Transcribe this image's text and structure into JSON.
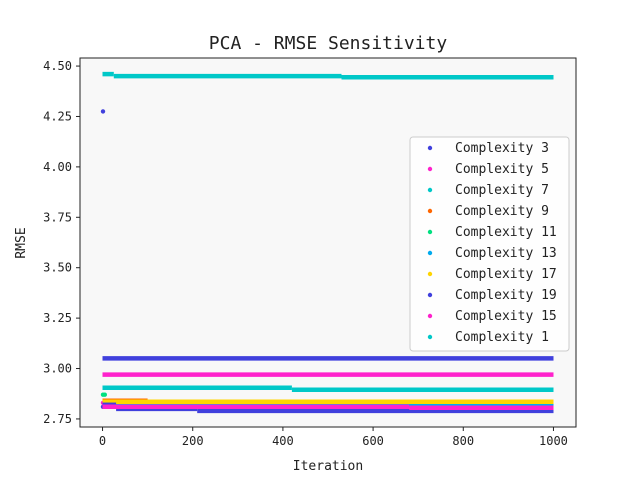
{
  "chart_data": {
    "type": "scatter",
    "title": "PCA - RMSE Sensitivity",
    "xlabel": "Iteration",
    "ylabel": "RMSE",
    "xlim": [
      -50,
      1050
    ],
    "ylim": [
      2.71,
      4.54
    ],
    "xticks": [
      0,
      200,
      400,
      600,
      800,
      1000
    ],
    "xtick_labels": [
      "0",
      "200",
      "400",
      "600",
      "800",
      "1000"
    ],
    "yticks": [
      2.75,
      3.0,
      3.25,
      3.5,
      3.75,
      4.0,
      4.25,
      4.5
    ],
    "ytick_labels": [
      "2.75",
      "3.00",
      "3.25",
      "3.50",
      "3.75",
      "4.00",
      "4.25",
      "4.50"
    ],
    "legend_position": "center-right",
    "grid": false,
    "plot_background": "#f8f8f8",
    "series": [
      {
        "name": "Complexity 3",
        "color": "#4040dd",
        "outliers": [
          [
            1,
            2.81
          ]
        ],
        "segments": [
          [
            0,
            1000,
            2.815
          ]
        ]
      },
      {
        "name": "Complexity 5",
        "color": "#ff22cc",
        "outliers": [
          [
            1,
            2.83
          ]
        ],
        "segments": [
          [
            0,
            1000,
            2.815
          ]
        ]
      },
      {
        "name": "Complexity 7",
        "color": "#00c8c8",
        "outliers": [],
        "segments": [
          [
            0,
            420,
            2.905
          ],
          [
            420,
            1000,
            2.895
          ]
        ]
      },
      {
        "name": "Complexity 9",
        "color": "#ff6600",
        "outliers": [],
        "segments": [
          [
            0,
            100,
            2.84
          ],
          [
            100,
            1000,
            2.83
          ]
        ]
      },
      {
        "name": "Complexity 11",
        "color": "#00e080",
        "outliers": [
          [
            1,
            2.87
          ],
          [
            5,
            2.87
          ]
        ],
        "segments": [
          [
            0,
            1000,
            2.822
          ]
        ]
      },
      {
        "name": "Complexity 13",
        "color": "#00aaee",
        "outliers": [],
        "segments": [
          [
            0,
            1000,
            2.825
          ]
        ]
      },
      {
        "name": "Complexity 17",
        "color": "#ffd400",
        "outliers": [],
        "segments": [
          [
            0,
            1000,
            2.835
          ]
        ]
      },
      {
        "name": "Complexity 19",
        "color": "#4040dd",
        "outliers": [
          [
            1,
            4.275
          ]
        ],
        "segments": [
          [
            0,
            1000,
            3.05
          ],
          [
            0,
            30,
            2.82
          ],
          [
            30,
            210,
            2.8
          ],
          [
            210,
            1000,
            2.79
          ]
        ]
      },
      {
        "name": "Complexity 15",
        "color": "#ff22cc",
        "outliers": [],
        "segments": [
          [
            0,
            1000,
            2.97
          ],
          [
            0,
            680,
            2.81
          ],
          [
            680,
            1000,
            2.805
          ]
        ]
      },
      {
        "name": "Complexity 1",
        "color": "#00c8c8",
        "outliers": [],
        "segments": [
          [
            0,
            25,
            4.46
          ],
          [
            25,
            530,
            4.45
          ],
          [
            530,
            1000,
            4.445
          ]
        ]
      }
    ]
  }
}
